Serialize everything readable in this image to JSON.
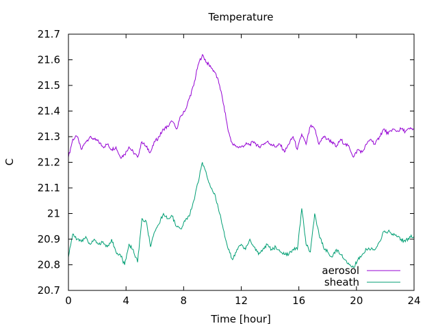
{
  "chart_data": {
    "type": "line",
    "title": "Temperature",
    "xlabel": "Time [hour]",
    "ylabel": "C",
    "xlim": [
      0,
      24
    ],
    "ylim": [
      20.7,
      21.7
    ],
    "xticks": [
      "0",
      "4",
      "8",
      "12",
      "16",
      "20",
      "24"
    ],
    "yticks": [
      "20.7",
      "20.8",
      "20.9",
      "21",
      "21.1",
      "21.2",
      "21.3",
      "21.4",
      "21.5",
      "21.6",
      "21.7"
    ],
    "grid": false,
    "legend_position": "bottom-right",
    "series": [
      {
        "name": "aerosol",
        "color": "#9400d3",
        "x": [
          0,
          0.3,
          0.6,
          0.9,
          1.2,
          1.5,
          1.8,
          2.1,
          2.4,
          2.7,
          3.0,
          3.3,
          3.6,
          3.9,
          4.2,
          4.5,
          4.8,
          5.1,
          5.4,
          5.7,
          6.0,
          6.3,
          6.6,
          6.9,
          7.2,
          7.5,
          7.8,
          8.1,
          8.4,
          8.7,
          9.0,
          9.3,
          9.6,
          9.9,
          10.2,
          10.5,
          10.8,
          11.1,
          11.4,
          11.7,
          12.0,
          12.3,
          12.6,
          12.9,
          13.2,
          13.5,
          13.8,
          14.1,
          14.4,
          14.7,
          15.0,
          15.3,
          15.6,
          15.9,
          16.2,
          16.5,
          16.8,
          17.1,
          17.4,
          17.7,
          18.0,
          18.3,
          18.6,
          18.9,
          19.2,
          19.5,
          19.8,
          20.1,
          20.4,
          20.7,
          21.0,
          21.3,
          21.6,
          21.9,
          22.2,
          22.5,
          22.8,
          23.1,
          23.4,
          23.7,
          24.0
        ],
        "y": [
          21.22,
          21.29,
          21.3,
          21.25,
          21.28,
          21.3,
          21.29,
          21.28,
          21.26,
          21.27,
          21.25,
          21.26,
          21.22,
          21.23,
          21.26,
          21.24,
          21.22,
          21.28,
          21.26,
          21.24,
          21.28,
          21.3,
          21.33,
          21.34,
          21.36,
          21.33,
          21.38,
          21.4,
          21.45,
          21.5,
          21.58,
          21.62,
          21.59,
          21.57,
          21.55,
          21.5,
          21.42,
          21.32,
          21.27,
          21.26,
          21.26,
          21.27,
          21.27,
          21.28,
          21.26,
          21.27,
          21.28,
          21.27,
          21.26,
          21.27,
          21.24,
          21.27,
          21.3,
          21.25,
          21.31,
          21.27,
          21.34,
          21.33,
          21.27,
          21.3,
          21.29,
          21.28,
          21.26,
          21.29,
          21.27,
          21.26,
          21.22,
          21.25,
          21.24,
          21.27,
          21.29,
          21.27,
          21.3,
          21.33,
          21.31,
          21.33,
          21.32,
          21.33,
          21.32,
          21.33,
          21.33
        ]
      },
      {
        "name": "sheath",
        "color": "#009e73",
        "x": [
          0,
          0.3,
          0.6,
          0.9,
          1.2,
          1.5,
          1.8,
          2.1,
          2.4,
          2.7,
          3.0,
          3.3,
          3.6,
          3.9,
          4.2,
          4.5,
          4.8,
          5.1,
          5.4,
          5.7,
          6.0,
          6.3,
          6.6,
          6.9,
          7.2,
          7.5,
          7.8,
          8.1,
          8.4,
          8.7,
          9.0,
          9.3,
          9.6,
          9.9,
          10.2,
          10.5,
          10.8,
          11.1,
          11.4,
          11.7,
          12.0,
          12.3,
          12.6,
          12.9,
          13.2,
          13.5,
          13.8,
          14.1,
          14.4,
          14.7,
          15.0,
          15.3,
          15.6,
          15.9,
          16.2,
          16.5,
          16.8,
          17.1,
          17.4,
          17.7,
          18.0,
          18.3,
          18.6,
          18.9,
          19.2,
          19.5,
          19.8,
          20.1,
          20.4,
          20.7,
          21.0,
          21.3,
          21.6,
          21.9,
          22.2,
          22.5,
          22.8,
          23.1,
          23.4,
          23.7,
          24.0
        ],
        "y": [
          20.83,
          20.92,
          20.9,
          20.89,
          20.91,
          20.88,
          20.9,
          20.88,
          20.89,
          20.87,
          20.9,
          20.85,
          20.84,
          20.8,
          20.88,
          20.86,
          20.81,
          20.98,
          20.97,
          20.87,
          20.93,
          20.96,
          21.0,
          20.98,
          20.99,
          20.95,
          20.94,
          20.97,
          20.99,
          21.05,
          21.12,
          21.2,
          21.15,
          21.1,
          21.07,
          21.0,
          20.93,
          20.86,
          20.82,
          20.86,
          20.88,
          20.86,
          20.9,
          20.87,
          20.84,
          20.86,
          20.88,
          20.86,
          20.87,
          20.85,
          20.84,
          20.84,
          20.86,
          20.86,
          21.02,
          20.88,
          20.85,
          21.0,
          20.92,
          20.87,
          20.85,
          20.83,
          20.86,
          20.84,
          20.82,
          20.8,
          20.79,
          20.82,
          20.84,
          20.86,
          20.86,
          20.86,
          20.89,
          20.93,
          20.93,
          20.92,
          20.91,
          20.9,
          20.89,
          20.91,
          20.91
        ]
      }
    ]
  }
}
